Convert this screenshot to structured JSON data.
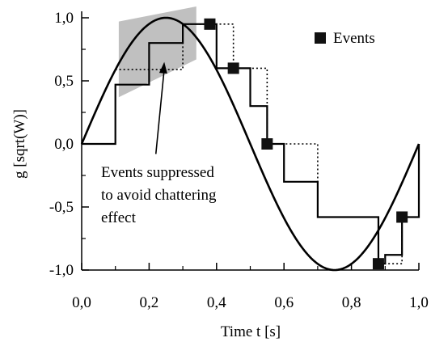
{
  "chart_data": {
    "type": "line",
    "xlabel": "Time t [s]",
    "ylabel": "g [sqrt(W)]",
    "xlim": [
      0.0,
      1.0
    ],
    "ylim": [
      -1.0,
      1.0
    ],
    "x_ticks": [
      0.0,
      0.2,
      0.4,
      0.6,
      0.8,
      1.0
    ],
    "x_tick_labels": [
      "0,0",
      "0,2",
      "0,4",
      "0,6",
      "0,8",
      "1,0"
    ],
    "y_ticks": [
      -1.0,
      -0.5,
      0.0,
      0.5,
      1.0
    ],
    "y_tick_labels": [
      "-1,0",
      "-0,5",
      "0,0",
      "0,5",
      "1,0"
    ],
    "grid": false,
    "legend": {
      "placement": "top-right",
      "entries": [
        {
          "label": "Events",
          "marker": "filled-square"
        }
      ]
    },
    "series": [
      {
        "style": "solid",
        "kind": "continuous",
        "function": "sin(2*pi*t)",
        "x": [
          0.0,
          0.05,
          0.1,
          0.15,
          0.2,
          0.25,
          0.3,
          0.35,
          0.4,
          0.45,
          0.5,
          0.55,
          0.6,
          0.65,
          0.7,
          0.75,
          0.8,
          0.85,
          0.9,
          0.95,
          1.0
        ],
        "y": [
          0.0,
          0.309,
          0.588,
          0.809,
          0.951,
          1.0,
          0.951,
          0.809,
          0.588,
          0.309,
          0.0,
          -0.309,
          -0.588,
          -0.809,
          -0.951,
          -1.0,
          -0.951,
          -0.809,
          -0.588,
          -0.309,
          0.0
        ]
      },
      {
        "style": "solid-step",
        "kind": "step",
        "x": [
          0.0,
          0.1,
          0.2,
          0.3,
          0.38,
          0.4,
          0.45,
          0.5,
          0.55,
          0.6,
          0.7,
          0.88,
          0.9,
          0.95,
          1.0,
          1.0
        ],
        "y": [
          0.0,
          0.47,
          0.8,
          0.95,
          0.95,
          0.6,
          0.6,
          0.3,
          0.0,
          -0.3,
          -0.58,
          -0.95,
          -0.88,
          -0.58,
          -0.29,
          0.0
        ]
      },
      {
        "style": "dotted-step",
        "kind": "step",
        "x": [
          0.1,
          0.2,
          0.3,
          0.38,
          0.4,
          0.45,
          0.5,
          0.55,
          0.6,
          0.7,
          0.88,
          0.9,
          0.95,
          1.0,
          1.0
        ],
        "y": [
          0.59,
          0.59,
          0.95,
          0.95,
          0.95,
          0.6,
          0.6,
          0.0,
          0.0,
          -0.58,
          -0.95,
          -0.95,
          -0.58,
          -0.58,
          0.0
        ]
      }
    ],
    "events": [
      {
        "x": 0.38,
        "y": 0.95
      },
      {
        "x": 0.45,
        "y": 0.6
      },
      {
        "x": 0.55,
        "y": 0.0
      },
      {
        "x": 0.88,
        "y": -0.95
      },
      {
        "x": 0.95,
        "y": -0.58
      }
    ],
    "shaded_region": {
      "description": "gray quadrilateral highlighting suppressed events",
      "points": [
        [
          0.11,
          0.97
        ],
        [
          0.34,
          1.09
        ],
        [
          0.34,
          0.67
        ],
        [
          0.11,
          0.37
        ]
      ],
      "color": "#c0c0c0"
    },
    "annotation": {
      "lines": [
        "Events suppressed",
        "to avoid chattering",
        "effect"
      ],
      "arrow_target": {
        "x": 0.245,
        "y": 0.65
      },
      "arrow_tail": {
        "x": 0.22,
        "y": -0.08
      }
    }
  }
}
